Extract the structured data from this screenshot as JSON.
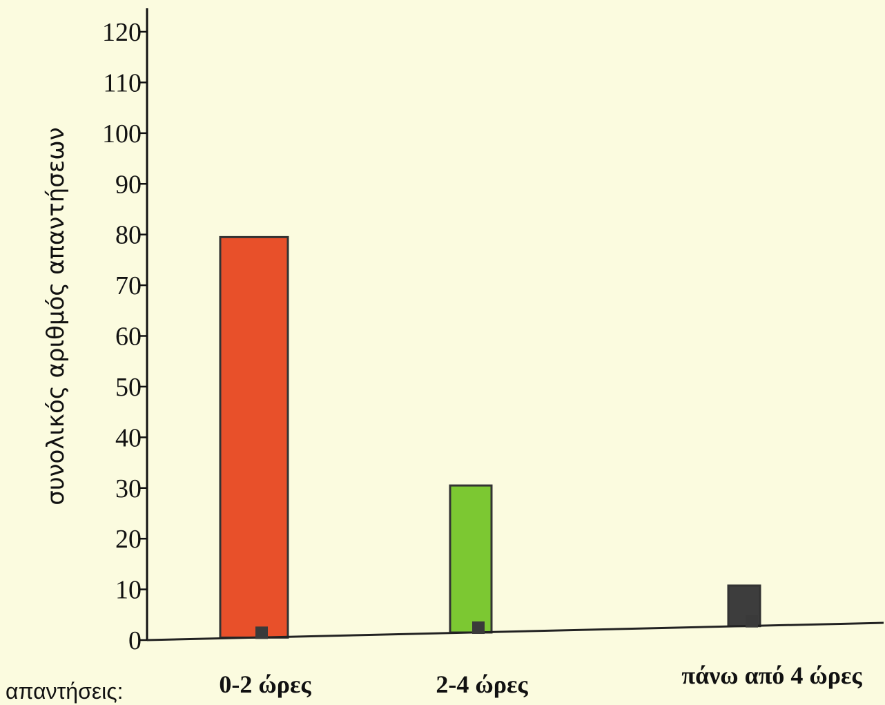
{
  "chart_data": {
    "type": "bar",
    "categories": [
      "0-2 ώρες",
      "2-4 ώρες",
      "πάνω από 4 ώρες"
    ],
    "values": [
      79,
      29,
      8
    ],
    "ylabel": "συνολικός αριθμός απαντήσεων",
    "xlabel": "απαντήσεις:",
    "ylim": [
      0,
      120
    ],
    "yticks": [
      0,
      10,
      20,
      30,
      40,
      50,
      60,
      70,
      80,
      90,
      100,
      110,
      120
    ],
    "colors": [
      "#e8502a",
      "#7cc832",
      "#3d3d3d"
    ],
    "grid": false,
    "legend": "none"
  }
}
